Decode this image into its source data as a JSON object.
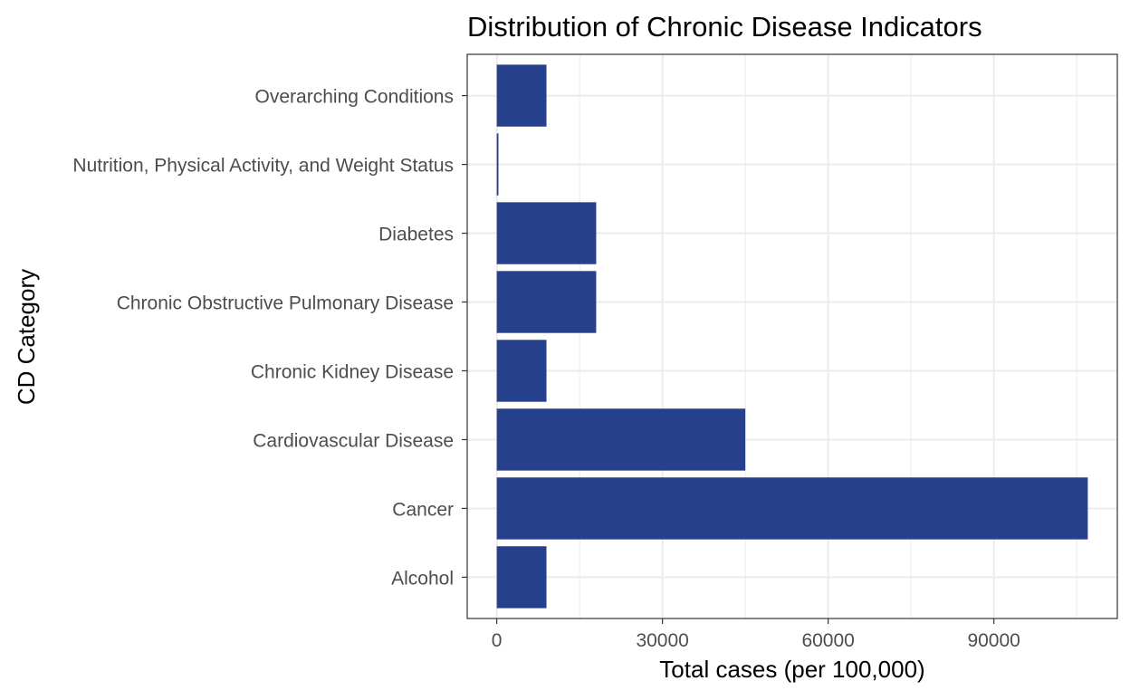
{
  "chart_data": {
    "type": "bar",
    "orientation": "horizontal",
    "title": "Distribution of Chronic Disease Indicators",
    "xlabel": "Total cases (per 100,000)",
    "ylabel": "CD Category",
    "categories": [
      "Alcohol",
      "Cancer",
      "Cardiovascular Disease",
      "Chronic Kidney Disease",
      "Chronic Obstructive Pulmonary Disease",
      "Diabetes",
      "Nutrition, Physical Activity, and Weight Status",
      "Overarching Conditions"
    ],
    "values": [
      9000,
      107000,
      45000,
      9000,
      18000,
      18000,
      300,
      9000
    ],
    "xlim": [
      -5350,
      112350
    ],
    "xticks": [
      0,
      30000,
      60000,
      90000
    ],
    "xtick_labels": [
      "0",
      "30000",
      "60000",
      "90000"
    ],
    "grid": true,
    "legend": "none",
    "colors": {
      "bar": "#27408B",
      "grid": "#EBEBEB",
      "panel_border": "#333333",
      "text": "#000000",
      "tick_text": "#4D4D4D"
    }
  }
}
